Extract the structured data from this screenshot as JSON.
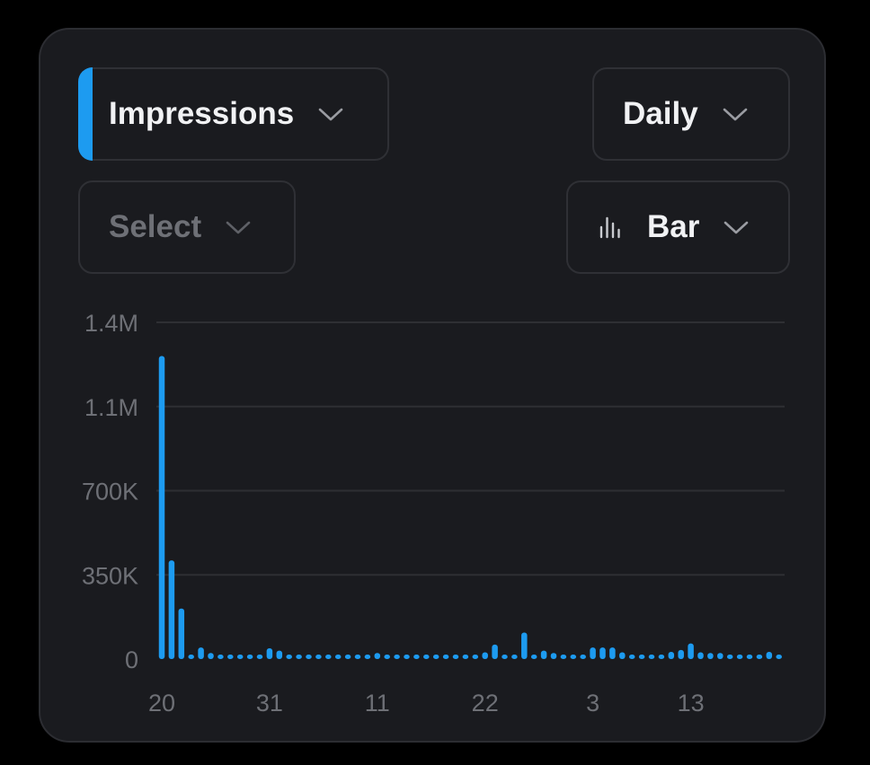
{
  "controls": {
    "metric": {
      "label": "Impressions",
      "accent": "#1d9bf0"
    },
    "period": {
      "label": "Daily"
    },
    "compare": {
      "placeholder": "Select"
    },
    "chart_type": {
      "label": "Bar",
      "icon": "bar-chart-icon"
    }
  },
  "colors": {
    "bar": "#1d9bf0",
    "grid": "#2e2f33",
    "tick": "#6e7076",
    "card": "#1a1b1f"
  },
  "chart_data": {
    "type": "bar",
    "title": "",
    "xlabel": "",
    "ylabel": "",
    "ylim": [
      0,
      1400000
    ],
    "y_ticks": [
      0,
      350000,
      700000,
      1050000,
      1400000
    ],
    "y_tick_labels": [
      "0",
      "350K",
      "700K",
      "1.1M",
      "1.4M"
    ],
    "x_tick_labels": [
      {
        "index": 0,
        "label": "20"
      },
      {
        "index": 11,
        "label": "31"
      },
      {
        "index": 22,
        "label": "11"
      },
      {
        "index": 33,
        "label": "22"
      },
      {
        "index": 44,
        "label": "3"
      },
      {
        "index": 54,
        "label": "13"
      }
    ],
    "grid": true,
    "legend": "none",
    "values": [
      1260000,
      410000,
      210000,
      18000,
      48000,
      25000,
      8000,
      8000,
      10000,
      8000,
      8000,
      45000,
      35000,
      8000,
      8000,
      8000,
      8000,
      8000,
      8000,
      8000,
      10000,
      8000,
      25000,
      12000,
      8000,
      8000,
      8000,
      8000,
      8000,
      8000,
      8000,
      8000,
      10000,
      28000,
      60000,
      14000,
      8000,
      110000,
      8000,
      35000,
      25000,
      15000,
      12000,
      15000,
      48000,
      48000,
      48000,
      28000,
      18000,
      15000,
      10000,
      10000,
      30000,
      38000,
      65000,
      28000,
      25000,
      25000,
      8000,
      8000,
      15000,
      15000,
      30000,
      18000
    ]
  }
}
